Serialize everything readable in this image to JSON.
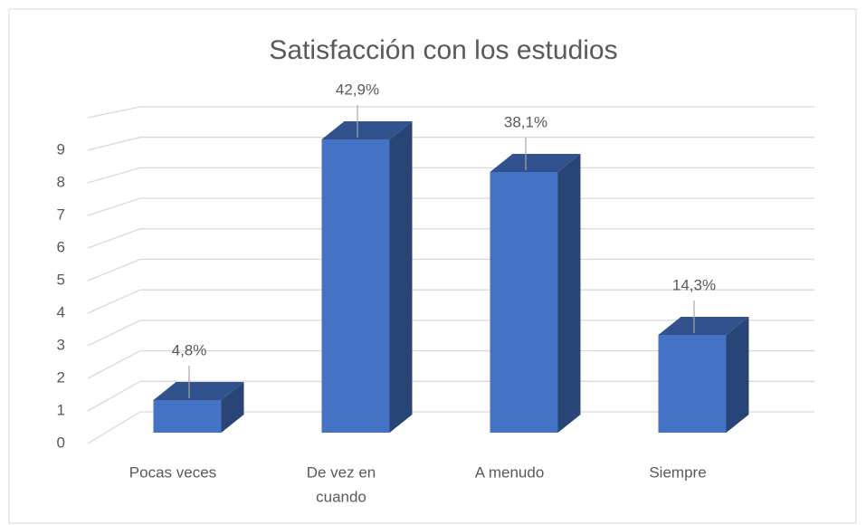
{
  "chart_data": {
    "type": "bar3d",
    "title": "Satisfacción con los estudios",
    "categories": [
      [
        "Pocas veces"
      ],
      [
        "De vez en",
        "cuando"
      ],
      [
        "A menudo"
      ],
      [
        "Siempre"
      ]
    ],
    "values": [
      1,
      9,
      8,
      3
    ],
    "data_labels": [
      "4,8%",
      "42,9%",
      "38,1%",
      "14,3%"
    ],
    "color": "#4472c4",
    "ylim": [
      0,
      10
    ],
    "yticks": [
      0,
      1,
      2,
      3,
      4,
      5,
      6,
      7,
      8,
      9
    ],
    "grid": true
  }
}
